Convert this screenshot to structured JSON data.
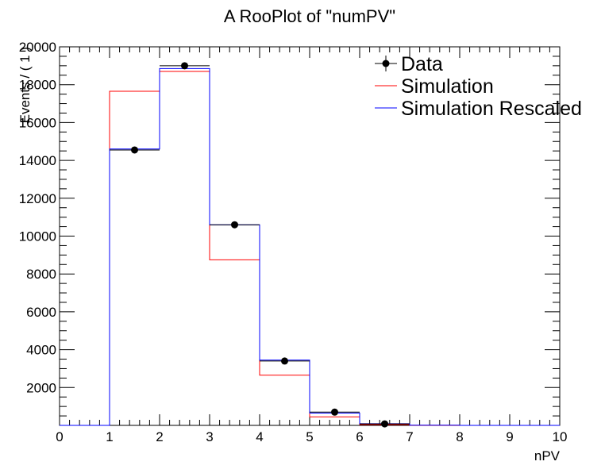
{
  "chart_data": {
    "type": "histogram",
    "title": "A RooPlot of \"numPV\"",
    "xlabel": "nPV",
    "ylabel": "Events / ( 1 )",
    "xlim": [
      0,
      10
    ],
    "ylim": [
      0,
      20000
    ],
    "x_ticks": [
      0,
      1,
      2,
      3,
      4,
      5,
      6,
      7,
      8,
      9,
      10
    ],
    "y_ticks": [
      2000,
      4000,
      6000,
      8000,
      10000,
      12000,
      14000,
      16000,
      18000,
      20000
    ],
    "bin_edges": [
      0,
      1,
      2,
      3,
      4,
      5,
      6,
      7,
      8,
      9,
      10
    ],
    "series": [
      {
        "name": "Data",
        "style": "points",
        "color": "#000000",
        "x": [
          1.5,
          2.5,
          3.5,
          4.5,
          5.5,
          6.5
        ],
        "y": [
          14550,
          19000,
          10600,
          3400,
          700,
          80
        ],
        "yerr": [
          120,
          138,
          103,
          58,
          26,
          9
        ]
      },
      {
        "name": "Simulation",
        "style": "step",
        "color": "#ff0000",
        "values": [
          0,
          17650,
          18700,
          8750,
          2650,
          450,
          40,
          5,
          0,
          0
        ]
      },
      {
        "name": "Simulation Rescaled",
        "style": "step",
        "color": "#0000ff",
        "values": [
          0,
          14600,
          18850,
          10600,
          3450,
          650,
          90,
          10,
          0,
          0
        ]
      }
    ],
    "legend": {
      "position": "top-right",
      "entries": [
        "Data",
        "Simulation",
        "Simulation Rescaled"
      ]
    }
  }
}
